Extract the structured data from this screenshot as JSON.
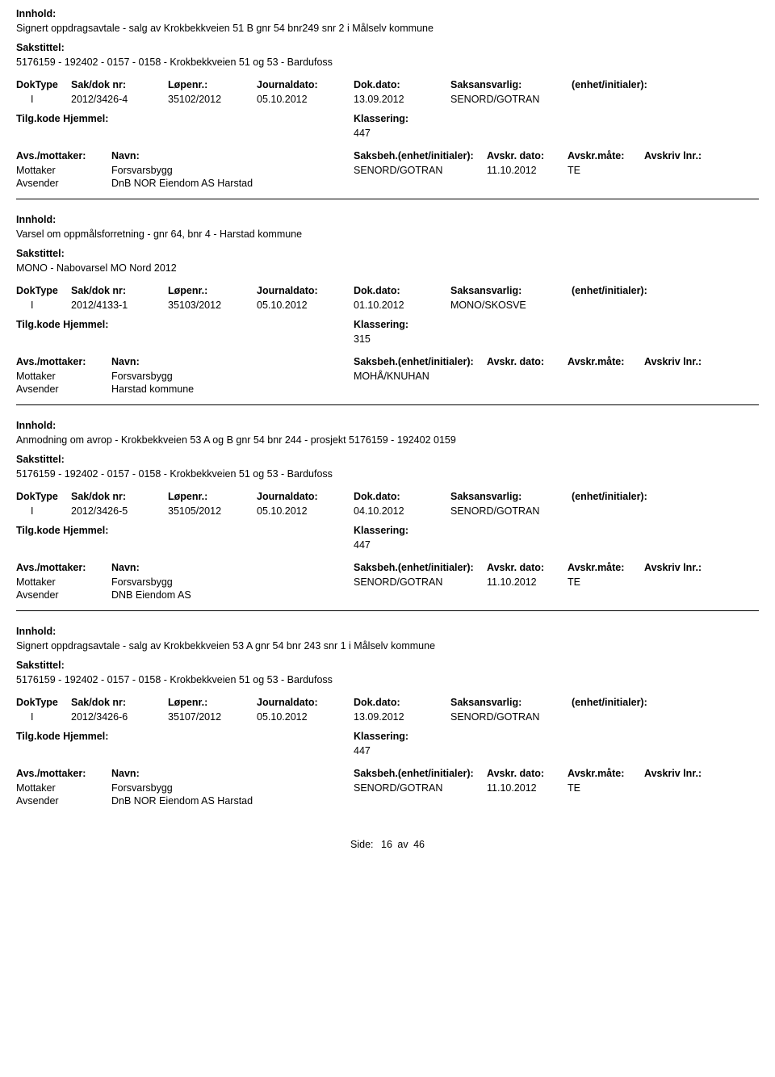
{
  "labels": {
    "innhold": "Innhold:",
    "sakstittel": "Sakstittel:",
    "doktype": "DokType",
    "sakdok": "Sak/dok nr:",
    "lopenr": "Løpenr.:",
    "journal": "Journaldato:",
    "dokdato": "Dok.dato:",
    "saksans": "Saksansvarlig:",
    "enhet": "(enhet/initialer):",
    "tilgkode": "Tilg.kode",
    "hjemmel": "Hjemmel:",
    "klassering": "Klassering:",
    "avsmot": "Avs./mottaker:",
    "navn": "Navn:",
    "saksbeh": "Saksbeh.",
    "saksbeh_enh": "(enhet/initialer):",
    "avskr_dato": "Avskr. dato:",
    "avskr_mate": "Avskr.måte:",
    "avskriv_lnr": "Avskriv lnr.:",
    "mottaker": "Mottaker",
    "avsender": "Avsender",
    "side": "Side:",
    "av": "av"
  },
  "entries": [
    {
      "content": "Signert oppdragsavtale - salg av Krokbekkveien 51 B gnr 54 bnr249 snr 2 i Målselv kommune",
      "caseTitle": "5176159 - 192402 - 0157 - 0158 - Krokbekkveien 51 og 53 - Bardufoss",
      "doktype": "I",
      "sakdok": "2012/3426-4",
      "lopenr": "35102/2012",
      "journal": "05.10.2012",
      "dokdato": "13.09.2012",
      "saksans": "SENORD/GOTRAN",
      "klass": "447",
      "parties": [
        {
          "role": "Mottaker",
          "name": "Forsvarsbygg",
          "saksb": "SENORD/GOTRAN",
          "date": "11.10.2012",
          "mate": "TE"
        },
        {
          "role": "Avsender",
          "name": "DnB NOR Eiendom AS Harstad",
          "saksb": "",
          "date": "",
          "mate": ""
        }
      ]
    },
    {
      "content": "Varsel om oppmålsforretning - gnr 64, bnr 4 - Harstad kommune",
      "caseTitle": "MONO - Nabovarsel MO Nord 2012",
      "doktype": "I",
      "sakdok": "2012/4133-1",
      "lopenr": "35103/2012",
      "journal": "05.10.2012",
      "dokdato": "01.10.2012",
      "saksans": "MONO/SKOSVE",
      "klass": "315",
      "parties": [
        {
          "role": "Mottaker",
          "name": "Forsvarsbygg",
          "saksb": "MOHÅ/KNUHAN",
          "date": "",
          "mate": ""
        },
        {
          "role": "Avsender",
          "name": "Harstad kommune",
          "saksb": "",
          "date": "",
          "mate": ""
        }
      ]
    },
    {
      "content": "Anmodning om avrop - Krokbekkveien 53 A og B gnr 54 bnr 244 - prosjekt 5176159 - 192402 0159",
      "caseTitle": "5176159 - 192402 - 0157 - 0158 - Krokbekkveien 51 og 53 - Bardufoss",
      "doktype": "I",
      "sakdok": "2012/3426-5",
      "lopenr": "35105/2012",
      "journal": "05.10.2012",
      "dokdato": "04.10.2012",
      "saksans": "SENORD/GOTRAN",
      "klass": "447",
      "parties": [
        {
          "role": "Mottaker",
          "name": "Forsvarsbygg",
          "saksb": "SENORD/GOTRAN",
          "date": "11.10.2012",
          "mate": "TE"
        },
        {
          "role": "Avsender",
          "name": "DNB Eiendom AS",
          "saksb": "",
          "date": "",
          "mate": ""
        }
      ]
    },
    {
      "content": "Signert oppdragsavtale - salg av Krokbekkveien 53 A  gnr 54 bnr 243 snr 1 i Målselv kommune",
      "caseTitle": "5176159 - 192402 - 0157 - 0158 - Krokbekkveien 51 og 53 - Bardufoss",
      "doktype": "I",
      "sakdok": "2012/3426-6",
      "lopenr": "35107/2012",
      "journal": "05.10.2012",
      "dokdato": "13.09.2012",
      "saksans": "SENORD/GOTRAN",
      "klass": "447",
      "parties": [
        {
          "role": "Mottaker",
          "name": "Forsvarsbygg",
          "saksb": "SENORD/GOTRAN",
          "date": "11.10.2012",
          "mate": "TE"
        },
        {
          "role": "Avsender",
          "name": "DnB NOR Eiendom AS Harstad",
          "saksb": "",
          "date": "",
          "mate": ""
        }
      ]
    }
  ],
  "footer": {
    "page": "16",
    "total": "46"
  }
}
